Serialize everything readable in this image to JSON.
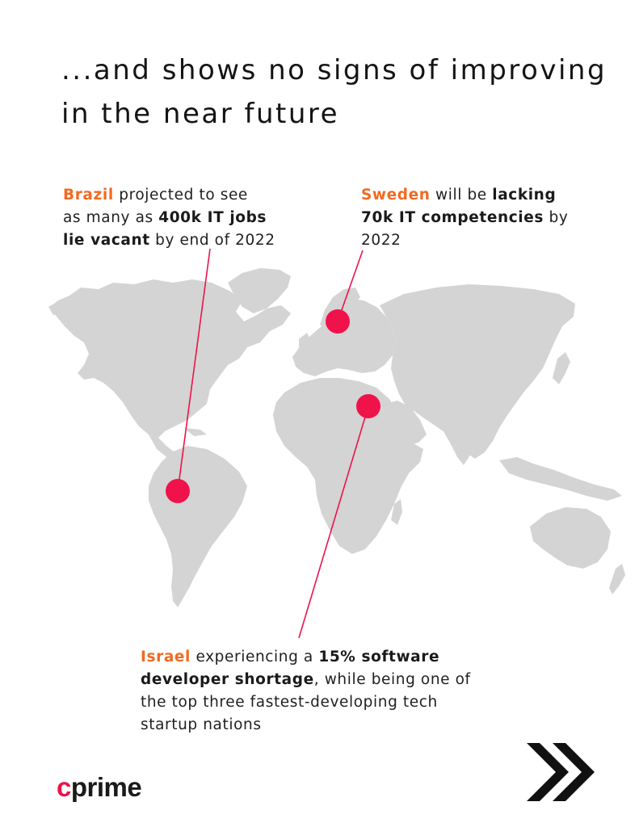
{
  "headline": {
    "line1": "...and shows no signs of improving",
    "line2": "in the near future"
  },
  "callouts": {
    "brazil": {
      "country": "Brazil",
      "t1": " projected to see",
      "t2": "as many as ",
      "s1": "400k IT jobs",
      "s2": "lie vacant",
      "t3": " by end of 2022"
    },
    "sweden": {
      "country": "Sweden",
      "t1": " will be ",
      "s1": "lacking",
      "s2": "70k IT competencies",
      "t2": " by",
      "t3": "2022"
    },
    "israel": {
      "country": "Israel",
      "t1": " experiencing a ",
      "s1": "15% software",
      "s2": "developer shortage",
      "t2": ", while being one of",
      "t3": "the top three fastest-developing tech",
      "t4": "startup nations"
    }
  },
  "map": {
    "markers": [
      "brazil",
      "sweden",
      "israel"
    ]
  },
  "brand": {
    "logo_c": "c",
    "logo_rest": "prime",
    "icon": "double-chevron-right-icon"
  },
  "colors": {
    "accent": "#f0124a",
    "country_label": "#f26a21",
    "land": "#d4d4d4",
    "text": "#1a1a1a"
  }
}
